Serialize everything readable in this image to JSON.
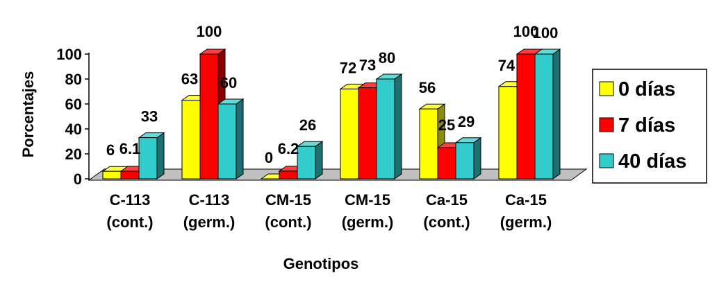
{
  "chart_data": {
    "type": "bar",
    "title": "",
    "xlabel": "Genotipos",
    "ylabel": "Porcentajes",
    "ylim": [
      0,
      100
    ],
    "yticks": [
      0,
      20,
      40,
      60,
      80,
      100
    ],
    "categories": [
      [
        "C-113",
        "(cont.)"
      ],
      [
        "C-113",
        "(germ.)"
      ],
      [
        "CM-15",
        "(cont.)"
      ],
      [
        "CM-15",
        "(germ.)"
      ],
      [
        "Ca-15",
        "(cont.)"
      ],
      [
        "Ca-15",
        "(germ.)"
      ]
    ],
    "series": [
      {
        "name": "0 días",
        "color": "#ffff00",
        "values": [
          6,
          63,
          0,
          72,
          56,
          74
        ],
        "labels": [
          "6",
          "63",
          "0",
          "72",
          "56",
          "74"
        ]
      },
      {
        "name": "7 días",
        "color": "#ff0000",
        "values": [
          6.1,
          100,
          6.2,
          73,
          25,
          100
        ],
        "labels": [
          "6.1",
          "100",
          "6.2",
          "73",
          "25",
          "100"
        ]
      },
      {
        "name": "40 días",
        "color": "#33cccc",
        "values": [
          33,
          60,
          26,
          80,
          29,
          100
        ],
        "labels": [
          "33",
          "60",
          "26",
          "80",
          "29",
          "100"
        ]
      }
    ],
    "legend_position": "right",
    "grid": false,
    "style": "3d-clustered"
  }
}
